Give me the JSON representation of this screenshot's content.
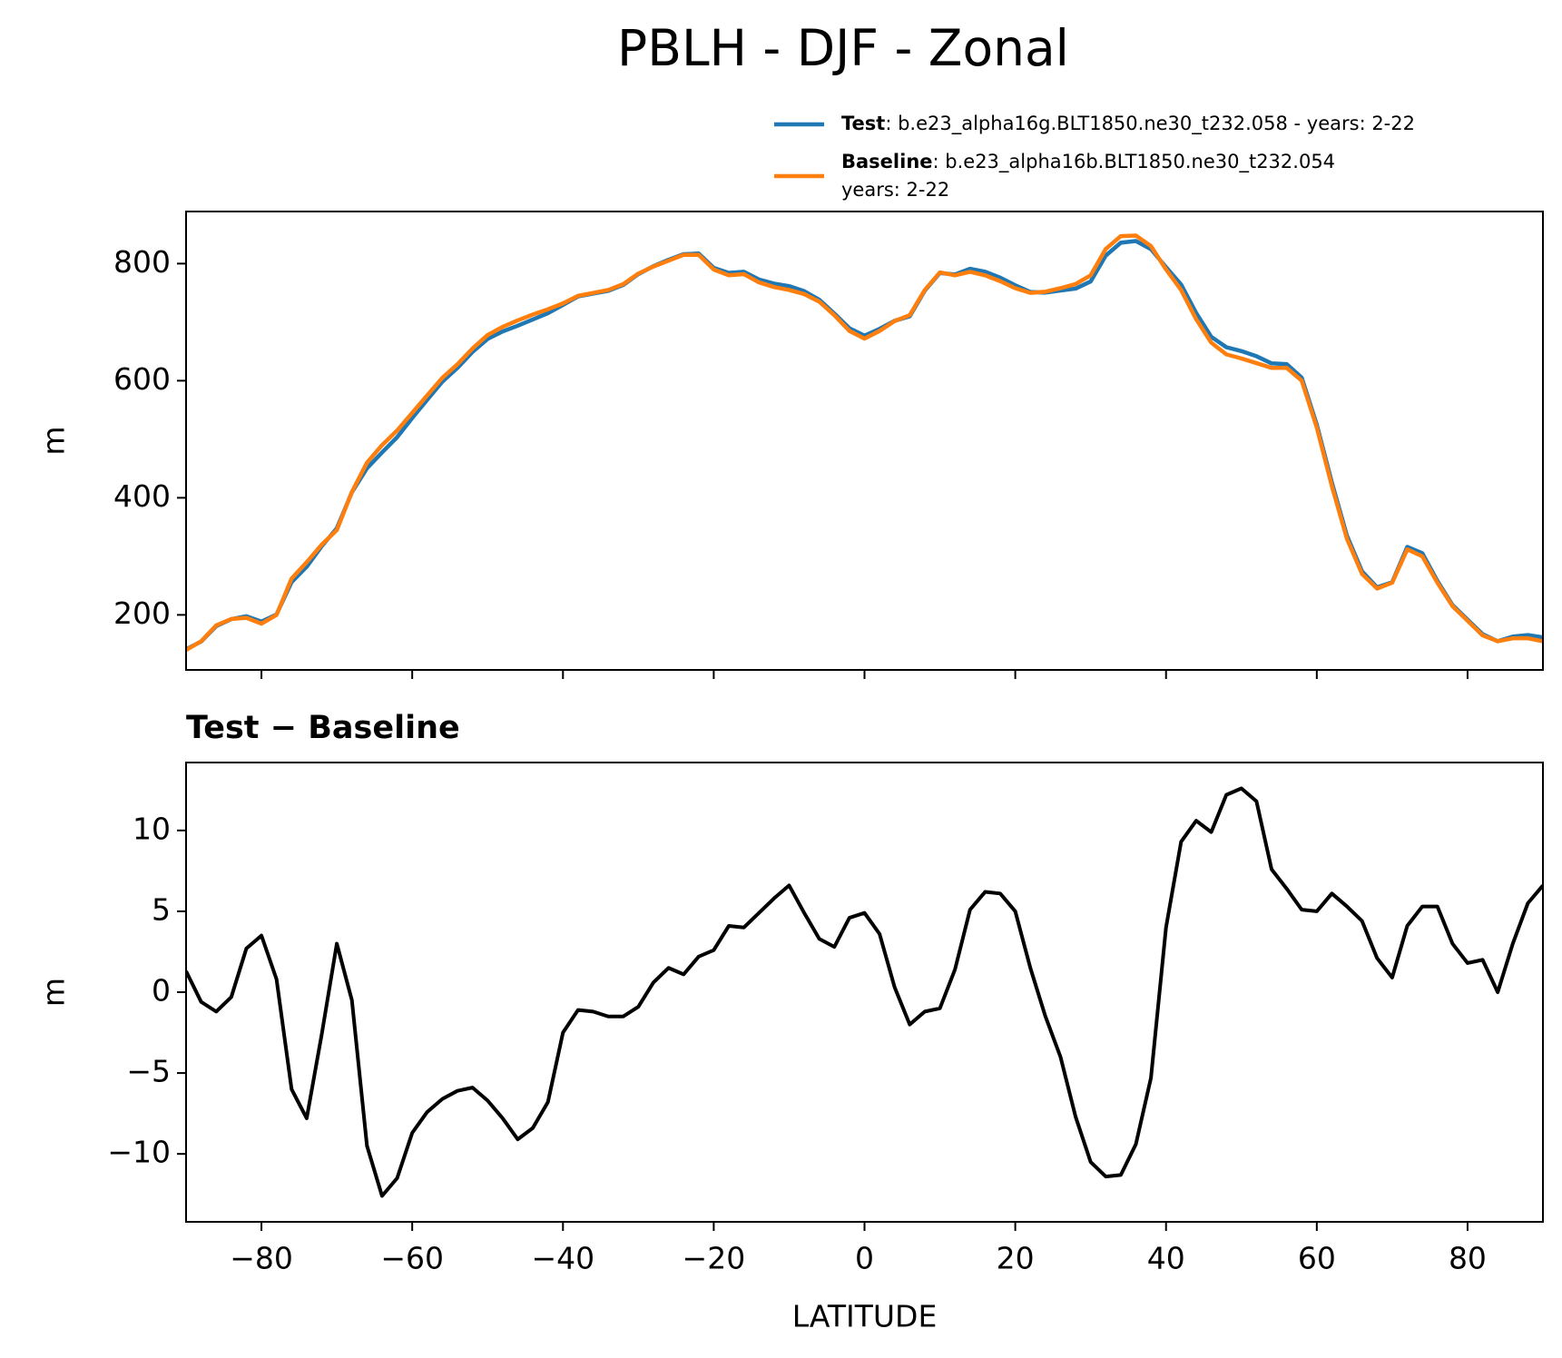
{
  "chart_data": [
    {
      "type": "line",
      "title": "PBLH - DJF - Zonal",
      "ylabel": "m",
      "x": [
        -90,
        -88,
        -86,
        -84,
        -82,
        -80,
        -78,
        -76,
        -74,
        -72,
        -70,
        -68,
        -66,
        -64,
        -62,
        -60,
        -58,
        -56,
        -54,
        -52,
        -50,
        -48,
        -46,
        -44,
        -42,
        -40,
        -38,
        -36,
        -34,
        -32,
        -30,
        -28,
        -26,
        -24,
        -22,
        -20,
        -18,
        -16,
        -14,
        -12,
        -10,
        -8,
        -6,
        -4,
        -2,
        0,
        2,
        4,
        6,
        8,
        10,
        12,
        14,
        16,
        18,
        20,
        22,
        24,
        26,
        28,
        30,
        32,
        34,
        36,
        38,
        40,
        42,
        44,
        46,
        48,
        50,
        52,
        54,
        56,
        58,
        60,
        62,
        64,
        66,
        68,
        70,
        72,
        74,
        76,
        78,
        80,
        82,
        84,
        86,
        88,
        90
      ],
      "series": [
        {
          "name": "Test",
          "description": [
            ": b.e23_alpha16g.BLT1850.ne30_t232.058 - years: 2-22"
          ],
          "color": "#1f77b4",
          "values": [
            141.3,
            154.4,
            180.8,
            192.7,
            197.7,
            188.5,
            200.8,
            256.0,
            282.2,
            317.4,
            348.0,
            409.5,
            450.5,
            477.4,
            503.5,
            536.3,
            567.6,
            598.4,
            621.9,
            649.1,
            671.3,
            684.2,
            693.9,
            704.6,
            715.2,
            729.5,
            743.9,
            748.8,
            753.5,
            763.5,
            782.1,
            795.6,
            806.5,
            816.1,
            817.2,
            792.6,
            784.1,
            786.0,
            772.9,
            765.8,
            761.6,
            752.9,
            738.3,
            714.8,
            689.6,
            676.9,
            688.6,
            702.3,
            710.0,
            753.8,
            784.0,
            781.4,
            791.1,
            786.2,
            776.1,
            763.0,
            751.5,
            750.5,
            754.0,
            757.3,
            769.5,
            813.6,
            835.7,
            838.6,
            824.7,
            794.0,
            764.3,
            715.6,
            674.9,
            657.2,
            650.6,
            641.8,
            629.6,
            628.4,
            605.1,
            525.0,
            426.1,
            335.3,
            274.4,
            247.1,
            255.9,
            316.1,
            305.3,
            258.0,
            216.8,
            191.8,
            167.0,
            155.0,
            163.0,
            165.5,
            161.6
          ]
        },
        {
          "name": "Baseline",
          "description": [
            ": b.e23_alpha16b.BLT1850.ne30_t232.054",
            "years: 2-22"
          ],
          "color": "#ff7f0e",
          "values": [
            140,
            155,
            182,
            193,
            195,
            185,
            200,
            262,
            290,
            320,
            345,
            410,
            460,
            490,
            515,
            545,
            575,
            605,
            628,
            655,
            678,
            692,
            703,
            713,
            722,
            732,
            745,
            750,
            755,
            765,
            783,
            795,
            805,
            815,
            815,
            790,
            780,
            782,
            768,
            760,
            755,
            748,
            735,
            712,
            685,
            672,
            685,
            702,
            712,
            755,
            785,
            780,
            786,
            780,
            770,
            758,
            750,
            752,
            758,
            765,
            780,
            825,
            847,
            848,
            830,
            790,
            755,
            705,
            665,
            645,
            638,
            630,
            622,
            622,
            600,
            520,
            420,
            330,
            270,
            245,
            255,
            312,
            300,
            255,
            215,
            190,
            165,
            155,
            160,
            160,
            155
          ]
        }
      ],
      "xlim": [
        -90,
        90
      ],
      "xticks": [
        -80,
        -60,
        -40,
        -20,
        0,
        20,
        40,
        60,
        80
      ],
      "ylim": [
        106,
        889
      ],
      "yticks": [
        200,
        400,
        600,
        800
      ]
    },
    {
      "type": "line",
      "title": "Test − Baseline",
      "xlabel": "LATITUDE",
      "ylabel": "m",
      "color": "#000000",
      "x": [
        -90,
        -88,
        -86,
        -84,
        -82,
        -80,
        -78,
        -76,
        -74,
        -72,
        -70,
        -68,
        -66,
        -64,
        -62,
        -60,
        -58,
        -56,
        -54,
        -52,
        -50,
        -48,
        -46,
        -44,
        -42,
        -40,
        -38,
        -36,
        -34,
        -32,
        -30,
        -28,
        -26,
        -24,
        -22,
        -20,
        -18,
        -16,
        -14,
        -12,
        -10,
        -8,
        -6,
        -4,
        -2,
        0,
        2,
        4,
        6,
        8,
        10,
        12,
        14,
        16,
        18,
        20,
        22,
        24,
        26,
        28,
        30,
        32,
        34,
        36,
        38,
        40,
        42,
        44,
        46,
        48,
        50,
        52,
        54,
        56,
        58,
        60,
        62,
        64,
        66,
        68,
        70,
        72,
        74,
        76,
        78,
        80,
        82,
        84,
        86,
        88,
        90
      ],
      "values": [
        1.3,
        -0.6,
        -1.2,
        -0.3,
        2.7,
        3.5,
        0.8,
        -6.0,
        -7.8,
        -2.6,
        3.0,
        -0.5,
        -9.5,
        -12.6,
        -11.5,
        -8.7,
        -7.4,
        -6.6,
        -6.1,
        -5.9,
        -6.7,
        -7.8,
        -9.1,
        -8.4,
        -6.8,
        -2.5,
        -1.1,
        -1.2,
        -1.5,
        -1.5,
        -0.9,
        0.6,
        1.5,
        1.1,
        2.2,
        2.6,
        4.1,
        4.0,
        4.9,
        5.8,
        6.6,
        4.9,
        3.3,
        2.8,
        4.6,
        4.9,
        3.6,
        0.3,
        -2.0,
        -1.2,
        -1.0,
        1.4,
        5.1,
        6.2,
        6.1,
        5.0,
        1.5,
        -1.5,
        -4.0,
        -7.7,
        -10.5,
        -11.4,
        -11.3,
        -9.4,
        -5.3,
        4.0,
        9.3,
        10.6,
        9.9,
        12.2,
        12.6,
        11.8,
        7.6,
        6.4,
        5.1,
        5.0,
        6.1,
        5.3,
        4.4,
        2.1,
        0.9,
        4.1,
        5.3,
        5.3,
        3.0,
        1.8,
        2.0,
        0.0,
        3.0,
        5.5,
        6.6
      ],
      "xlim": [
        -90,
        90
      ],
      "xticks": [
        {
          "value": -80,
          "label": "−80"
        },
        {
          "value": -60,
          "label": "−60"
        },
        {
          "value": -40,
          "label": "−40"
        },
        {
          "value": -20,
          "label": "−20"
        },
        0,
        20,
        40,
        60,
        80
      ],
      "ylim": [
        -14.2,
        14.2
      ],
      "yticks": [
        {
          "value": -10,
          "label": "−10"
        },
        {
          "value": -5,
          "label": "−5"
        },
        0,
        5,
        10
      ]
    }
  ]
}
